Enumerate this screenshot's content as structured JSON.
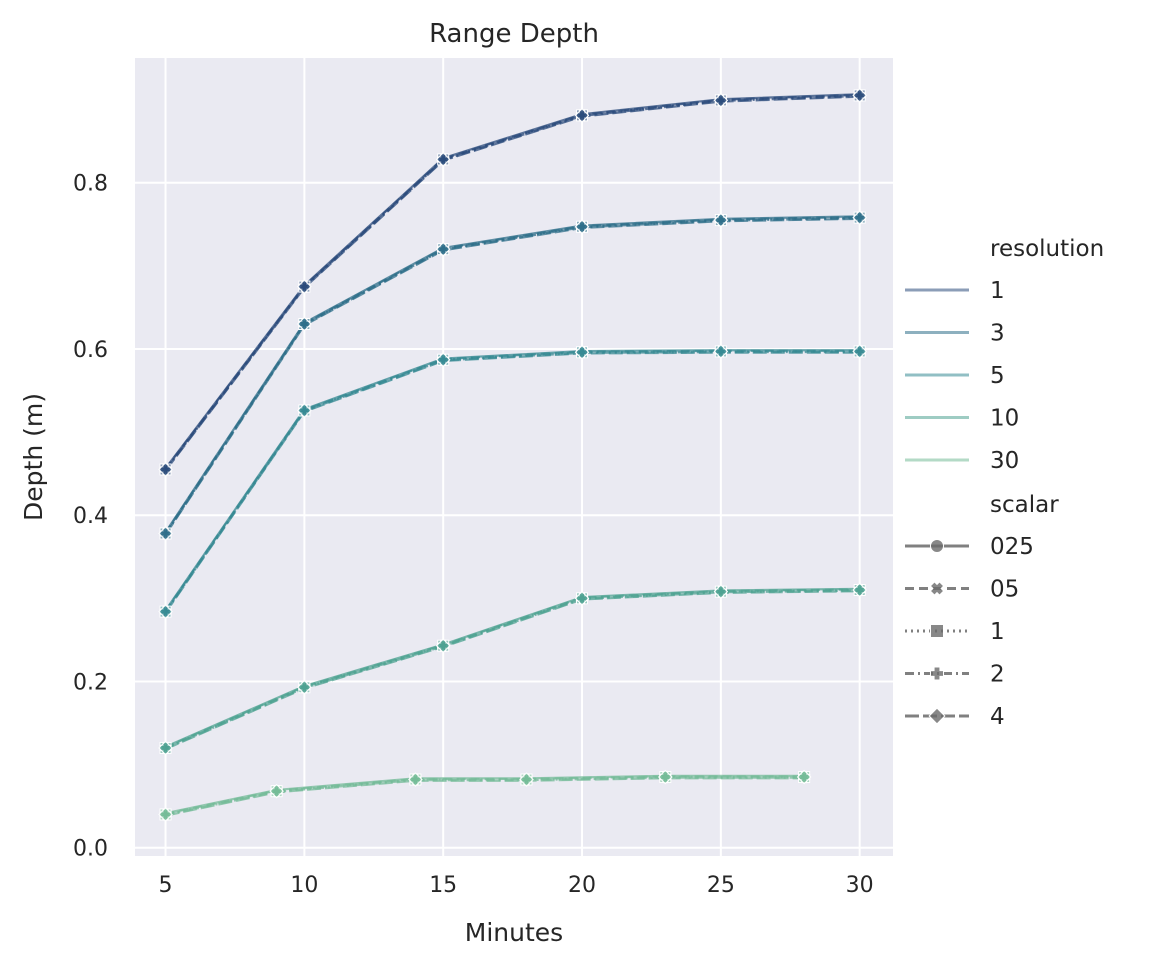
{
  "chart_data": {
    "type": "line",
    "title": "Range Depth",
    "xlabel": "Minutes",
    "ylabel": "Depth (m)",
    "xlim": [
      3.9,
      31.2
    ],
    "ylim": [
      -0.01,
      0.95
    ],
    "xticks": [
      5,
      10,
      15,
      20,
      25,
      30
    ],
    "yticks": [
      0.0,
      0.2,
      0.4,
      0.6,
      0.8
    ],
    "ytick_labels": [
      "0.0",
      "0.2",
      "0.4",
      "0.6",
      "0.8"
    ],
    "grid": true,
    "background": "#eaeaf2",
    "legend_position": "right",
    "legend": {
      "resolution_title": "resolution",
      "resolution": [
        {
          "label": "1",
          "color": "#2c4c7c"
        },
        {
          "label": "3",
          "color": "#2f6f8a"
        },
        {
          "label": "5",
          "color": "#378a93"
        },
        {
          "label": "10",
          "color": "#4fa391"
        },
        {
          "label": "30",
          "color": "#74bb98"
        }
      ],
      "scalar_title": "scalar",
      "scalar": [
        {
          "label": "025",
          "marker": "circle",
          "dash": "solid"
        },
        {
          "label": "05",
          "marker": "x",
          "dash": "dashed"
        },
        {
          "label": "1",
          "marker": "square",
          "dash": "dotted"
        },
        {
          "label": "2",
          "marker": "plus",
          "dash": "dashdot"
        },
        {
          "label": "4",
          "marker": "diamond",
          "dash": "longdash"
        }
      ]
    },
    "series": [
      {
        "resolution": "1",
        "color": "#2c4c7c",
        "x": [
          5,
          10,
          15,
          20,
          25,
          30
        ],
        "y": [
          0.455,
          0.675,
          0.828,
          0.881,
          0.899,
          0.905
        ]
      },
      {
        "resolution": "3",
        "color": "#2f6f8a",
        "x": [
          5,
          10,
          15,
          20,
          25,
          30
        ],
        "y": [
          0.378,
          0.63,
          0.72,
          0.747,
          0.755,
          0.758
        ]
      },
      {
        "resolution": "5",
        "color": "#378a93",
        "x": [
          5,
          10,
          15,
          20,
          25,
          30
        ],
        "y": [
          0.284,
          0.526,
          0.587,
          0.596,
          0.597,
          0.597
        ]
      },
      {
        "resolution": "10",
        "color": "#4fa391",
        "x": [
          5,
          10,
          15,
          20,
          25,
          30
        ],
        "y": [
          0.12,
          0.193,
          0.243,
          0.3,
          0.308,
          0.31
        ]
      },
      {
        "resolution": "30",
        "color": "#74bb98",
        "x": [
          5,
          9,
          14,
          18,
          23,
          28
        ],
        "y": [
          0.04,
          0.068,
          0.082,
          0.082,
          0.085,
          0.085
        ]
      }
    ]
  }
}
